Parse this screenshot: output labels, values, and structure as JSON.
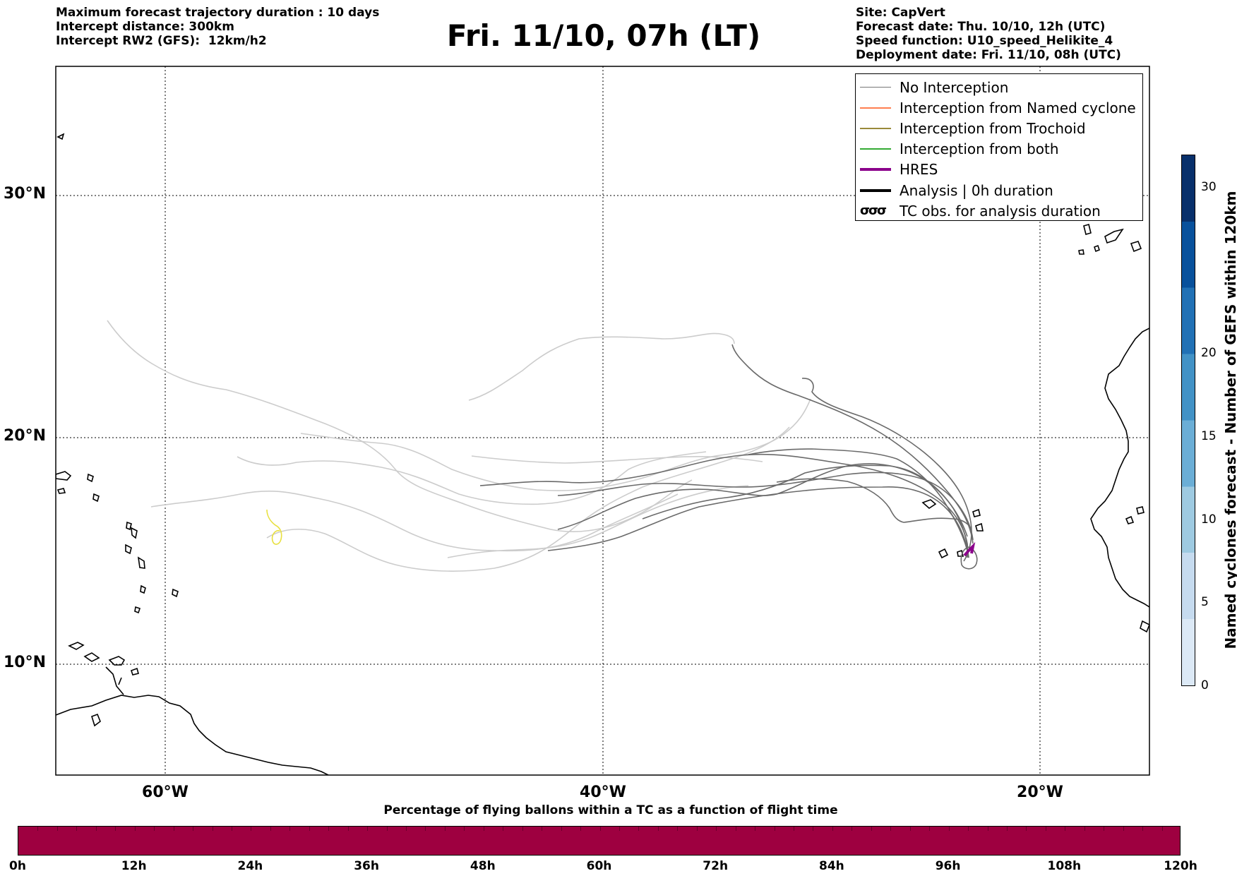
{
  "header_left": [
    "Maximum forecast trajectory duration : 10 days",
    "Intercept distance: 300km",
    "Intercept RW2 (GFS):  12km/h2"
  ],
  "title": "Fri. 11/10, 07h (LT)",
  "header_right": [
    "Site: CapVert",
    "Forecast date: Thu. 10/10, 12h (UTC)",
    "Speed function: U10_speed_Helikite_4",
    "Deployment date: Fri. 11/10, 08h (UTC)"
  ],
  "map": {
    "lon_range": [
      -65,
      15
    ],
    "lat_range": [
      5,
      35
    ],
    "lat_labels": [
      "30°N",
      "20°N",
      "10°N"
    ],
    "lon_labels": [
      "60°W",
      "40°W",
      "20°W"
    ],
    "grid": "dotted",
    "colors": {
      "no_interception": "#777777",
      "named_cyclone": "#ff7f50",
      "trochoid": "#9a8a3a",
      "both": "#33aa33",
      "hres": "#8b008b",
      "analysis": "#000000",
      "tc_obs": "#e8e040"
    }
  },
  "legend": {
    "placement": "top-right",
    "items": [
      {
        "label": "No Interception",
        "color": "#777777",
        "width": 1.5
      },
      {
        "label": "Interception from Named cyclone",
        "color": "#ff7f50",
        "width": 1.5
      },
      {
        "label": "Interception from Trochoid",
        "color": "#9a8a3a",
        "width": 1.5
      },
      {
        "label": "Interception from both",
        "color": "#33aa33",
        "width": 1.5
      },
      {
        "label": "HRES",
        "color": "#8b008b",
        "width": 4
      },
      {
        "label": "Analysis | 0h duration",
        "color": "#000000",
        "width": 4
      },
      {
        "label": "TC obs. for analysis duration",
        "symbol": "σσσ"
      }
    ]
  },
  "colorbar_right": {
    "label": "Named cyclones forecast - Number of GEFS within 120km",
    "ticks": [
      "0",
      "5",
      "10",
      "15",
      "20",
      "30"
    ],
    "colors": [
      "#dce9f6",
      "#c6dbef",
      "#9ecae1",
      "#6baed6",
      "#4292c6",
      "#2171b5",
      "#08519c",
      "#08306b"
    ]
  },
  "colorbar_bottom": {
    "title": "Percentage of flying ballons within a TC as a function of flight time",
    "ticks": [
      "0h",
      "12h",
      "24h",
      "36h",
      "48h",
      "60h",
      "72h",
      "84h",
      "96h",
      "108h",
      "120h"
    ],
    "color": "#9e0040"
  }
}
